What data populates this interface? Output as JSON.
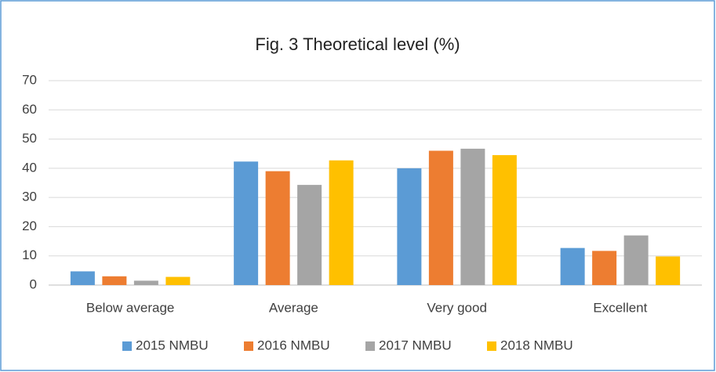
{
  "chart_data": {
    "type": "bar",
    "title": "Fig. 3 Theoretical level  (%)",
    "categories": [
      "Below average",
      "Average",
      "Very good",
      "Excellent"
    ],
    "series": [
      {
        "name": "2015 NMBU",
        "color": "#5b9bd5",
        "values": [
          4.7,
          42.3,
          40.0,
          12.7
        ]
      },
      {
        "name": "2016 NMBU",
        "color": "#ed7d31",
        "values": [
          3.0,
          39.0,
          46.0,
          11.7
        ]
      },
      {
        "name": "2017 NMBU",
        "color": "#a5a5a5",
        "values": [
          1.5,
          34.3,
          46.7,
          17.0
        ]
      },
      {
        "name": "2018 NMBU",
        "color": "#ffc000",
        "values": [
          2.8,
          42.7,
          44.5,
          9.8
        ]
      }
    ],
    "ylim": [
      0,
      70
    ],
    "yticks": [
      0,
      10,
      20,
      30,
      40,
      50,
      60,
      70
    ],
    "grid": true,
    "legend": "bottom"
  }
}
